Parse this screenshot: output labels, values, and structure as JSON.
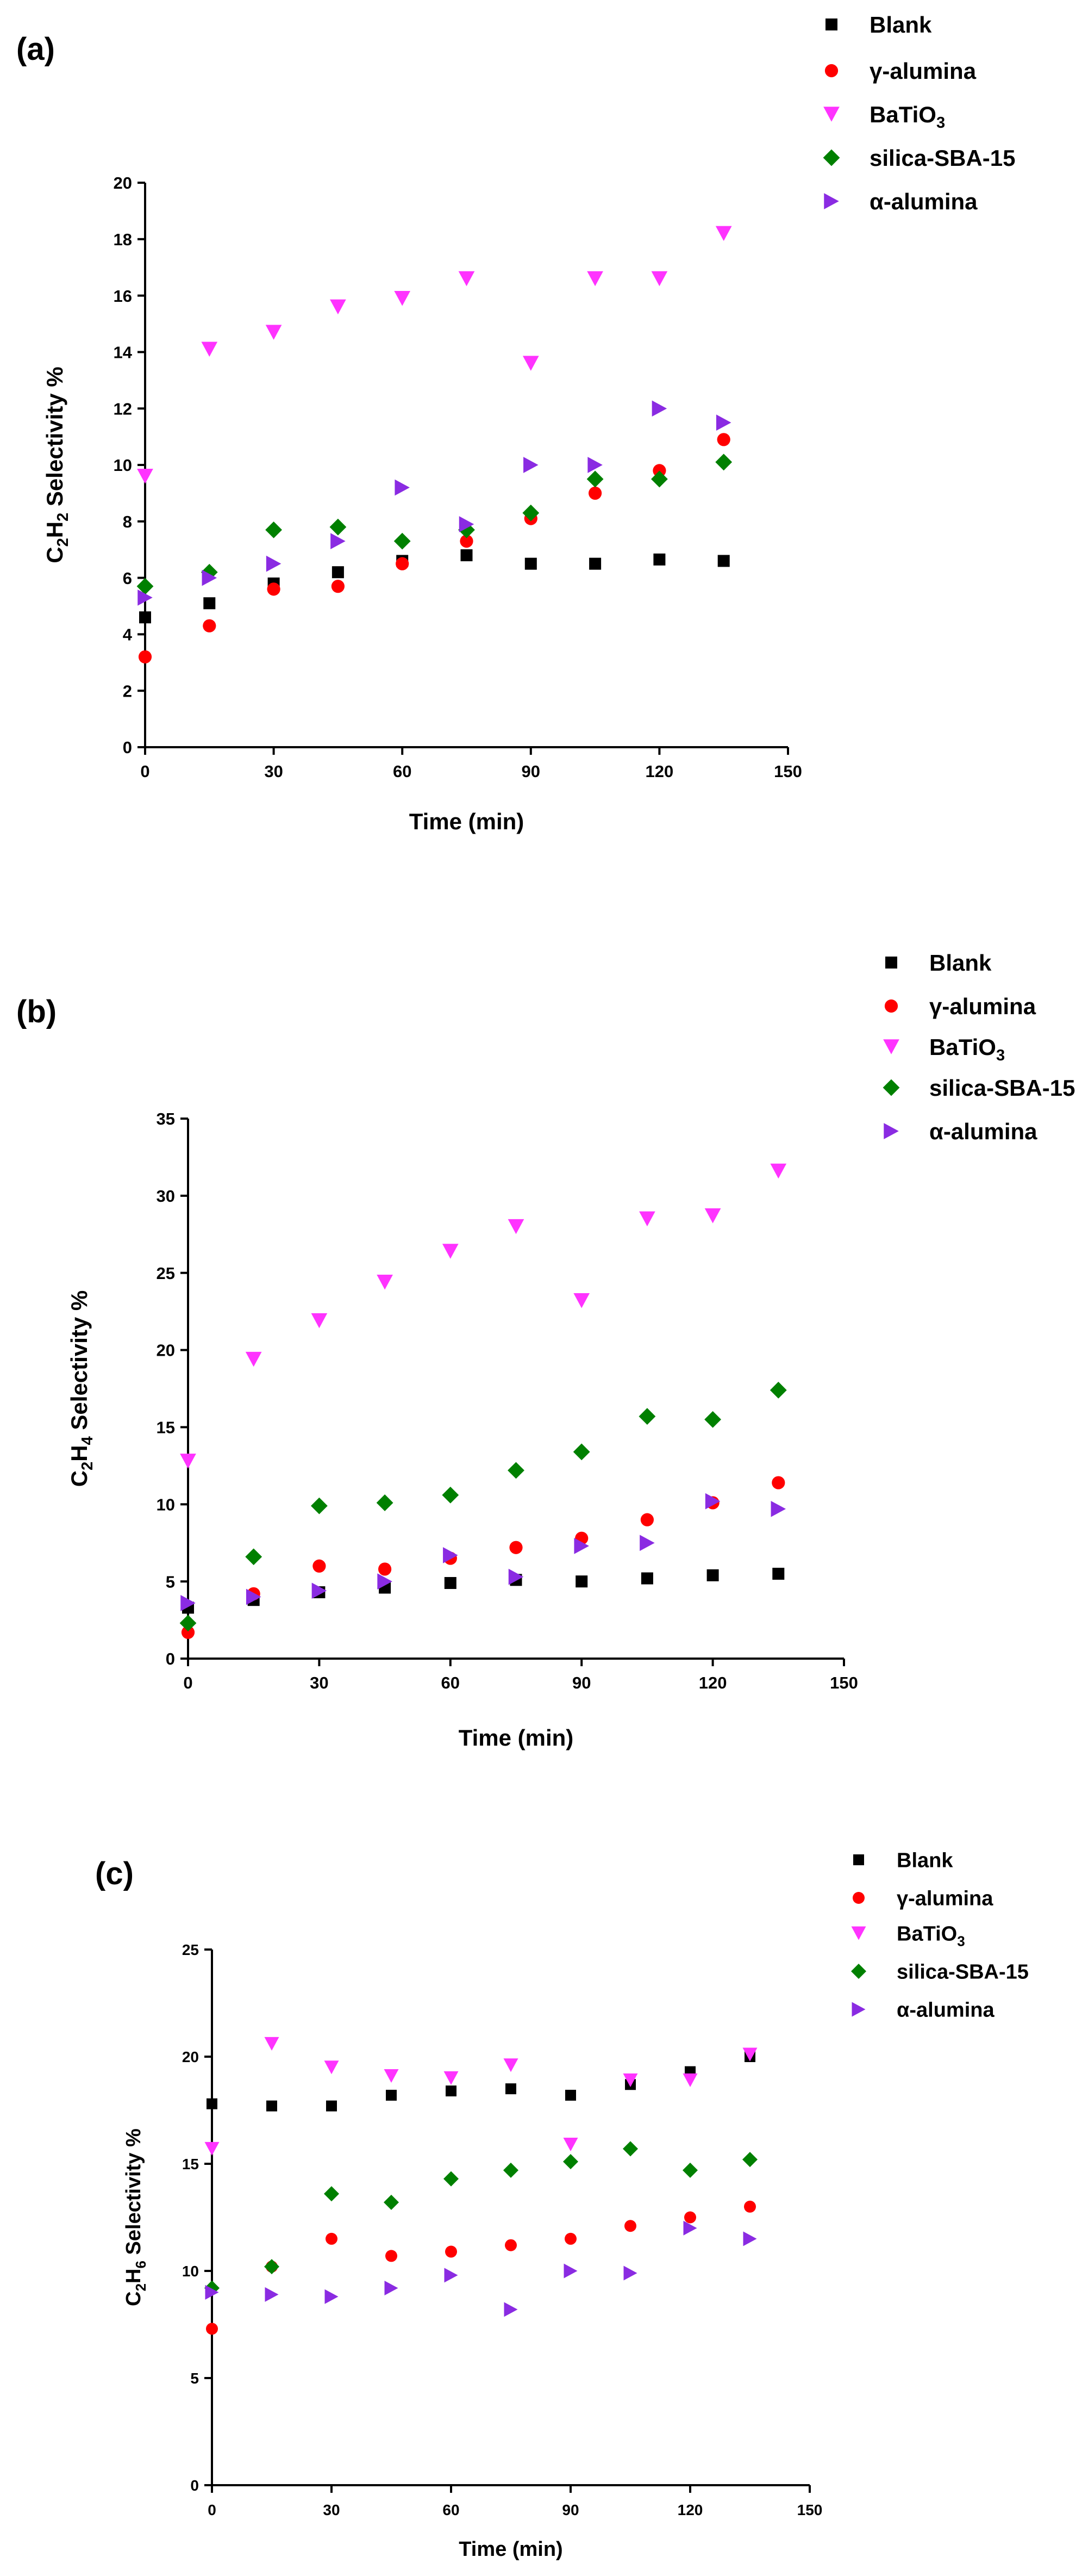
{
  "colors": {
    "Blank": "#000000",
    "gamma_alumina": "#ff0000",
    "BaTiO3": "#ff33ff",
    "silica_SBA_15": "#008000",
    "alpha_alumina": "#8a2be2"
  },
  "chart_data": [
    {
      "panel": "(a)",
      "type": "scatter",
      "xlabel": "Time (min)",
      "ylabel": {
        "base": "C",
        "sub1": "2",
        "mid": "H",
        "sub2": "2",
        "tail": " Selectivity %"
      },
      "xlim": [
        0,
        150
      ],
      "ylim": [
        0,
        20
      ],
      "xticks": [
        "0",
        "30",
        "60",
        "90",
        "120",
        "150"
      ],
      "yticks": [
        "0",
        "2",
        "4",
        "6",
        "8",
        "10",
        "12",
        "14",
        "16",
        "18",
        "20"
      ],
      "x": [
        0,
        15,
        30,
        45,
        60,
        75,
        90,
        105,
        120,
        135
      ],
      "legend_position": "top-right",
      "series": [
        {
          "key": "Blank",
          "name": "Blank",
          "marker": "square",
          "values": [
            4.6,
            5.1,
            5.8,
            6.2,
            6.6,
            6.8,
            6.5,
            6.5,
            6.65,
            6.6
          ]
        },
        {
          "key": "gamma_alumina",
          "name": "γ-alumina",
          "marker": "circle",
          "values": [
            3.2,
            4.3,
            5.6,
            5.7,
            6.5,
            7.3,
            8.1,
            9.0,
            9.8,
            10.9
          ]
        },
        {
          "key": "BaTiO3",
          "name": "BaTiO",
          "name_sub": "3",
          "marker": "triangle-down",
          "values": [
            9.6,
            14.1,
            14.7,
            15.6,
            15.9,
            16.6,
            13.6,
            16.6,
            16.6,
            18.2
          ]
        },
        {
          "key": "silica_SBA_15",
          "name": "silica-SBA-15",
          "marker": "diamond",
          "values": [
            5.7,
            6.2,
            7.7,
            7.8,
            7.3,
            7.7,
            8.3,
            9.5,
            9.5,
            10.1
          ]
        },
        {
          "key": "alpha_alumina",
          "name": "α-alumina",
          "marker": "triangle-right",
          "values": [
            5.3,
            6.0,
            6.5,
            7.3,
            9.2,
            7.9,
            10.0,
            10.0,
            12.0,
            11.5
          ]
        }
      ]
    },
    {
      "panel": "(b)",
      "type": "scatter",
      "xlabel": "Time (min)",
      "ylabel": {
        "base": "C",
        "sub1": "2",
        "mid": "H",
        "sub2": "4",
        "tail": " Selectivity %"
      },
      "xlim": [
        0,
        150
      ],
      "ylim": [
        0,
        35
      ],
      "xticks": [
        "0",
        "30",
        "60",
        "90",
        "120",
        "150"
      ],
      "yticks": [
        "0",
        "5",
        "10",
        "15",
        "20",
        "25",
        "30",
        "35"
      ],
      "x": [
        0,
        15,
        30,
        45,
        60,
        75,
        90,
        105,
        120,
        135
      ],
      "legend_position": "top-right",
      "series": [
        {
          "key": "Blank",
          "name": "Blank",
          "marker": "square",
          "values": [
            3.3,
            3.8,
            4.3,
            4.6,
            4.9,
            5.1,
            5.0,
            5.2,
            5.4,
            5.5
          ]
        },
        {
          "key": "gamma_alumina",
          "name": "γ-alumina",
          "marker": "circle",
          "values": [
            1.7,
            4.2,
            6.0,
            5.8,
            6.5,
            7.2,
            7.8,
            9.0,
            10.1,
            11.4
          ]
        },
        {
          "key": "BaTiO3",
          "name": "BaTiO",
          "name_sub": "3",
          "marker": "triangle-down",
          "values": [
            12.8,
            19.4,
            21.9,
            24.4,
            26.4,
            28.0,
            23.2,
            28.5,
            28.7,
            31.6
          ]
        },
        {
          "key": "silica_SBA_15",
          "name": "silica-SBA-15",
          "marker": "diamond",
          "values": [
            2.3,
            6.6,
            9.9,
            10.1,
            10.6,
            12.2,
            13.4,
            15.7,
            15.5,
            17.4
          ]
        },
        {
          "key": "alpha_alumina",
          "name": "α-alumina",
          "marker": "triangle-right",
          "values": [
            3.6,
            4.0,
            4.4,
            5.0,
            6.7,
            5.3,
            7.3,
            7.5,
            10.2,
            9.7
          ]
        }
      ]
    },
    {
      "panel": "(c)",
      "type": "scatter",
      "xlabel": "Time (min)",
      "ylabel": {
        "base": "C",
        "sub1": "2",
        "mid": "H",
        "sub2": "6",
        "tail": " Selectivity %"
      },
      "xlim": [
        0,
        150
      ],
      "ylim": [
        0,
        25
      ],
      "xticks": [
        "0",
        "30",
        "60",
        "90",
        "120",
        "150"
      ],
      "yticks": [
        "0",
        "5",
        "10",
        "15",
        "20",
        "25"
      ],
      "x": [
        0,
        15,
        30,
        45,
        60,
        75,
        90,
        105,
        120,
        135
      ],
      "legend_position": "top-right",
      "series": [
        {
          "key": "Blank",
          "name": "Blank",
          "marker": "square",
          "values": [
            17.8,
            17.7,
            17.7,
            18.2,
            18.4,
            18.5,
            18.2,
            18.7,
            19.3,
            20.0
          ]
        },
        {
          "key": "gamma_alumina",
          "name": "γ-alumina",
          "marker": "circle",
          "values": [
            7.3,
            10.2,
            11.5,
            10.7,
            10.9,
            11.2,
            11.5,
            12.1,
            12.5,
            13.0
          ]
        },
        {
          "key": "BaTiO3",
          "name": "BaTiO",
          "name_sub": "3",
          "marker": "triangle-down",
          "values": [
            15.7,
            20.6,
            19.5,
            19.1,
            19.0,
            19.6,
            15.9,
            18.9,
            18.9,
            20.1
          ]
        },
        {
          "key": "silica_SBA_15",
          "name": "silica-SBA-15",
          "marker": "diamond",
          "values": [
            9.2,
            10.2,
            13.6,
            13.2,
            14.3,
            14.7,
            15.1,
            15.7,
            14.7,
            15.2
          ]
        },
        {
          "key": "alpha_alumina",
          "name": "α-alumina",
          "marker": "triangle-right",
          "values": [
            9.0,
            8.9,
            8.8,
            9.2,
            9.8,
            8.2,
            10.0,
            9.9,
            12.0,
            11.5
          ]
        }
      ]
    }
  ]
}
